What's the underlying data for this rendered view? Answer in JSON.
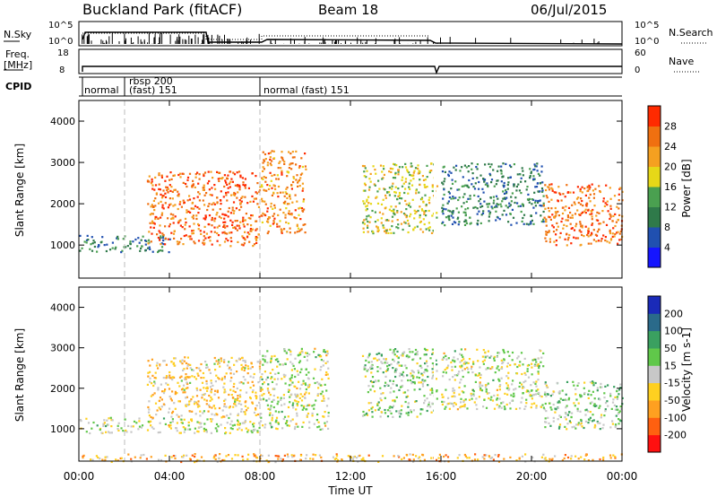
{
  "header": {
    "station": "Buckland Park (fitACF)",
    "beam": "Beam 18",
    "date": "06/Jul/2015"
  },
  "strips": {
    "nsky_label": "N.Sky",
    "nsky_ticks": [
      "10^5",
      "10^0"
    ],
    "nsearch_label": "N.Search",
    "freq_label": [
      "Freq.",
      "[MHz]"
    ],
    "freq_ticks": [
      "18",
      "8"
    ],
    "nave_label": "Nave",
    "nave_ticks": [
      "60",
      "0"
    ],
    "cpid_label": "CPID",
    "cpid_segments": [
      {
        "text": "normal"
      },
      {
        "text": "rbsp 200"
      },
      {
        "text": "(fast) 151"
      },
      {
        "text": "normal (fast) 151"
      }
    ]
  },
  "axes": {
    "xlabel": "Time UT",
    "xticks": [
      "00:00",
      "04:00",
      "08:00",
      "12:00",
      "16:00",
      "20:00",
      "00:00"
    ],
    "ylabel": "Slant Range [km]",
    "yticks": [
      "1000",
      "2000",
      "3000",
      "4000"
    ]
  },
  "power_scale": {
    "label": "Power [dB]",
    "ticks": [
      "4",
      "8",
      "12",
      "16",
      "20",
      "24",
      "28"
    ],
    "colors": [
      "#1515ff",
      "#2050b0",
      "#2f7a4a",
      "#4aa050",
      "#e6d818",
      "#f5a020",
      "#f07010",
      "#ff2a00"
    ]
  },
  "velocity_scale": {
    "label": "Velocity [m s-1]",
    "ticks": [
      "200",
      "100",
      "50",
      "15",
      "-15",
      "-50",
      "-100",
      "-200"
    ],
    "colors": [
      "#1a2ab8",
      "#2a6a8a",
      "#3aa060",
      "#60c84a",
      "#c8c8c8",
      "#ffd020",
      "#ffa020",
      "#ff6010",
      "#ff1010"
    ]
  },
  "chart_data": [
    {
      "type": "heatmap",
      "title": "Power",
      "xlabel": "Time UT",
      "ylabel": "Slant Range [km]",
      "xlim": [
        0,
        24
      ],
      "ylim": [
        200,
        4500
      ],
      "colorbar": {
        "label": "Power [dB]",
        "range": [
          0,
          32
        ]
      },
      "regions": [
        {
          "t": [
            0,
            4
          ],
          "range": [
            850,
            1250
          ],
          "value": 10
        },
        {
          "t": [
            3,
            8
          ],
          "range": [
            1000,
            2800
          ],
          "value": 26
        },
        {
          "t": [
            8,
            10
          ],
          "range": [
            1300,
            3300
          ],
          "value": 24
        },
        {
          "t": [
            12.5,
            15.8
          ],
          "range": [
            1300,
            3000
          ],
          "value": 18
        },
        {
          "t": [
            16,
            20.5
          ],
          "range": [
            1500,
            3000
          ],
          "value": 10
        },
        {
          "t": [
            20.5,
            24
          ],
          "range": [
            1000,
            2500
          ],
          "value": 26
        }
      ]
    },
    {
      "type": "heatmap",
      "title": "Velocity",
      "xlabel": "Time UT",
      "ylabel": "Slant Range [km]",
      "xlim": [
        0,
        24
      ],
      "ylim": [
        200,
        4500
      ],
      "colorbar": {
        "label": "Velocity [m s-1]",
        "range": [
          -200,
          200
        ]
      },
      "regions": [
        {
          "t": [
            0,
            8
          ],
          "range": [
            900,
            1300
          ],
          "value": 0
        },
        {
          "t": [
            3,
            8
          ],
          "range": [
            1300,
            2800
          ],
          "value": -40
        },
        {
          "t": [
            8,
            11
          ],
          "range": [
            1000,
            3000
          ],
          "value": 0
        },
        {
          "t": [
            12.5,
            15.8
          ],
          "range": [
            1300,
            3000
          ],
          "value": 30
        },
        {
          "t": [
            16,
            20.5
          ],
          "range": [
            1500,
            3000
          ],
          "value": 0
        },
        {
          "t": [
            20.5,
            24
          ],
          "range": [
            1000,
            2200
          ],
          "value": 30
        },
        {
          "t": [
            0,
            24
          ],
          "range": [
            200,
            400
          ],
          "value": -60
        }
      ]
    }
  ]
}
